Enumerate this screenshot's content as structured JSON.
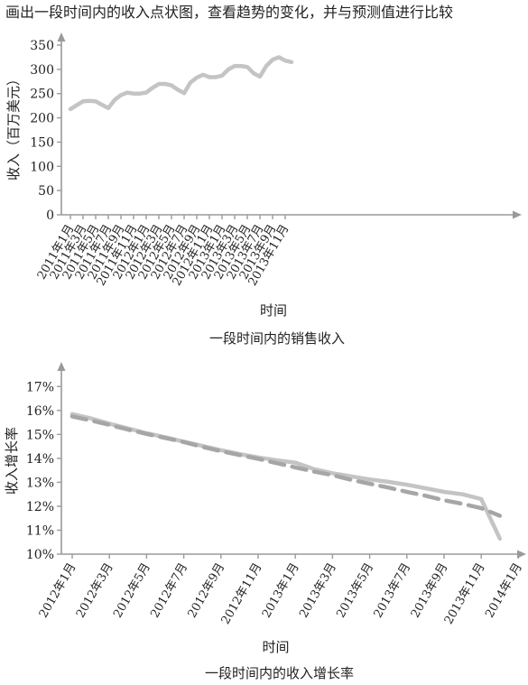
{
  "caption": "画出一段时间内的收入点状图，查看趋势的变化，并与预测值进行比较",
  "colors": {
    "axis": "#9a9a9a",
    "line": "#c4c4c4",
    "dashed": "#a6a6a6",
    "text": "#222222"
  },
  "chart_data": [
    {
      "type": "line",
      "title": "一段时间内的销售收入",
      "xlabel": "时间",
      "ylabel": "收入（百万美元）",
      "ylim": [
        0,
        350
      ],
      "yticks": [
        0,
        50,
        100,
        150,
        200,
        250,
        300,
        350
      ],
      "yticklabels": [
        "0",
        "50",
        "100",
        "150",
        "200",
        "250",
        "300",
        "350"
      ],
      "grid": false,
      "xticklabels": [
        "2011年1月",
        "2011年3月",
        "2011年5月",
        "2011年7月",
        "2011年9月",
        "2011年11月",
        "2012年1月",
        "2012年3月",
        "2012年5月",
        "2012年7月",
        "2012年9月",
        "2012年11月",
        "2013年1月",
        "2013年3月",
        "2013年5月",
        "2013年7月",
        "2013年9月",
        "2013年11月"
      ],
      "x": [
        "2011年1月",
        "2011年2月",
        "2011年3月",
        "2011年4月",
        "2011年5月",
        "2011年6月",
        "2011年7月",
        "2011年8月",
        "2011年9月",
        "2011年10月",
        "2011年11月",
        "2011年12月",
        "2012年1月",
        "2012年2月",
        "2012年3月",
        "2012年4月",
        "2012年5月",
        "2012年6月",
        "2012年7月",
        "2012年8月",
        "2012年9月",
        "2012年10月",
        "2012年11月",
        "2012年12月",
        "2013年1月",
        "2013年2月",
        "2013年3月",
        "2013年4月",
        "2013年5月",
        "2013年6月",
        "2013年7月",
        "2013年8月",
        "2013年9月",
        "2013年10月",
        "2013年11月",
        "2013年12月"
      ],
      "series": [
        {
          "values": [
            218,
            226,
            234,
            235,
            234,
            227,
            220,
            237,
            247,
            252,
            250,
            250,
            252,
            262,
            270,
            270,
            267,
            258,
            251,
            273,
            283,
            289,
            284,
            284,
            287,
            300,
            307,
            307,
            305,
            292,
            285,
            307,
            320,
            325,
            318,
            315
          ]
        }
      ]
    },
    {
      "type": "line",
      "title": "一段时间内的收入增长率",
      "xlabel": "时间",
      "ylabel": "收入增长率",
      "ylim": [
        10,
        17.5
      ],
      "yticks": [
        10,
        11,
        12,
        13,
        14,
        15,
        16,
        17
      ],
      "yticklabels": [
        "10%",
        "11%",
        "12%",
        "13%",
        "14%",
        "15%",
        "16%",
        "17%"
      ],
      "grid": false,
      "xticklabels": [
        "2012年1月",
        "2012年3月",
        "2012年5月",
        "2012年7月",
        "2012年9月",
        "2012年11月",
        "2013年1月",
        "2013年3月",
        "2013年5月",
        "2013年7月",
        "2013年9月",
        "2013年11月",
        "2014年1月"
      ],
      "x": [
        "2012年1月",
        "2012年2月",
        "2012年3月",
        "2012年4月",
        "2012年5月",
        "2012年6月",
        "2012年7月",
        "2012年8月",
        "2012年9月",
        "2012年10月",
        "2012年11月",
        "2012年12月",
        "2013年1月",
        "2013年2月",
        "2013年3月",
        "2013年4月",
        "2013年5月",
        "2013年6月",
        "2013年7月",
        "2013年8月",
        "2013年9月",
        "2013年10月",
        "2013年11月",
        "2013年12月"
      ],
      "series": [
        {
          "style": "solid",
          "values": [
            15.85,
            15.67,
            15.45,
            15.25,
            15.05,
            14.88,
            14.7,
            14.52,
            14.34,
            14.18,
            14.04,
            13.92,
            13.82,
            13.55,
            13.38,
            13.25,
            13.12,
            13.02,
            12.9,
            12.75,
            12.6,
            12.5,
            12.3,
            10.65
          ]
        },
        {
          "style": "dashed",
          "values": [
            15.75,
            15.58,
            15.4,
            15.2,
            15.02,
            14.85,
            14.68,
            14.48,
            14.3,
            14.14,
            13.98,
            13.8,
            13.62,
            13.45,
            13.3,
            13.1,
            12.94,
            12.78,
            12.6,
            12.44,
            12.25,
            12.1,
            11.92,
            11.6
          ]
        }
      ]
    }
  ]
}
